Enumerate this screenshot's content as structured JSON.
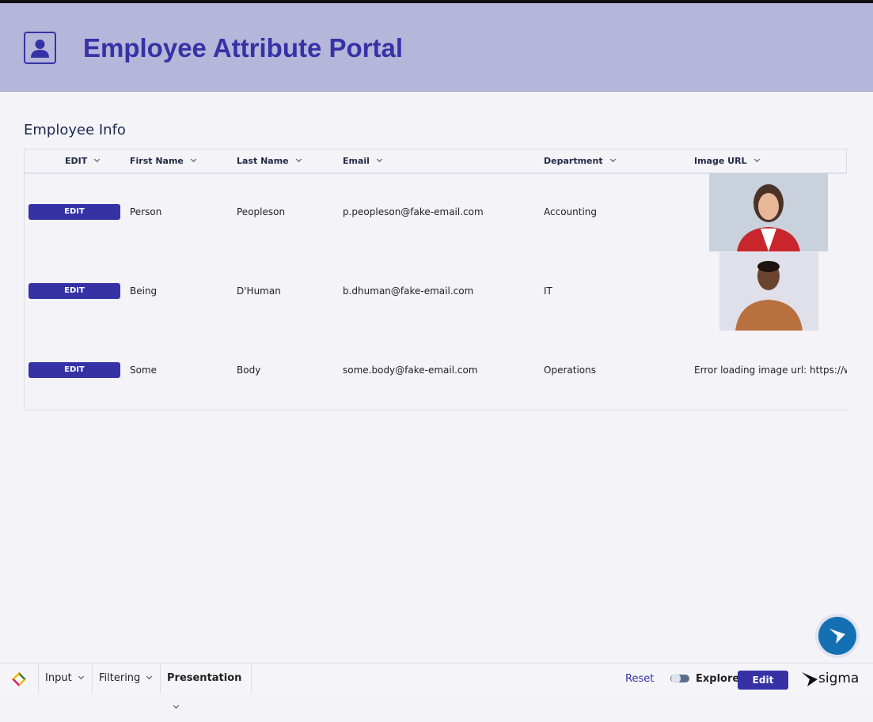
{
  "header": {
    "title": "Employee Attribute Portal"
  },
  "table": {
    "title": "Employee Info",
    "columns": [
      "EDIT",
      "First Name",
      "Last Name",
      "Email",
      "Department",
      "Image URL"
    ],
    "rows": [
      {
        "edit": "EDIT",
        "first": "Person",
        "last": "Peopleson",
        "email": "p.peopleson@fake-email.com",
        "department": "Accounting"
      },
      {
        "edit": "EDIT",
        "first": "Being",
        "last": "D'Human",
        "email": "b.dhuman@fake-email.com",
        "department": "IT"
      },
      {
        "edit": "EDIT",
        "first": "Some",
        "last": "Body",
        "email": "some.body@fake-email.com",
        "department": "Operations",
        "image_error": "Error loading image url: https://www"
      }
    ]
  },
  "footer": {
    "tabs": [
      "Input",
      "Filtering",
      "Presentation"
    ],
    "reset": "Reset",
    "explore": "Explore",
    "edit": "Edit",
    "brand": "sigma"
  }
}
